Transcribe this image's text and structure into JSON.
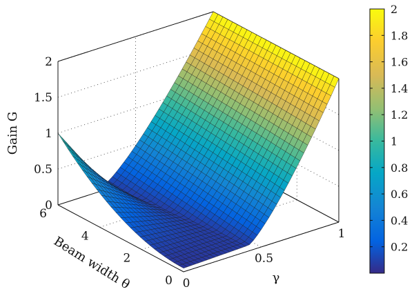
{
  "chart_data": {
    "type": "surface",
    "zlabel": "Gain G",
    "xlabel": "Beam width θ",
    "ylabel": "γ",
    "theta_range": [
      0,
      6
    ],
    "gamma_range": [
      0,
      1
    ],
    "zlim": [
      0,
      2
    ],
    "theta_ticks": [
      "0",
      "2",
      "4",
      "6"
    ],
    "gamma_ticks": [
      "0",
      "0.5",
      "1"
    ],
    "z_ticks": [
      "0",
      "0.5",
      "1",
      "1.5",
      "2"
    ],
    "colorbar": {
      "range": [
        0,
        2
      ],
      "ticks": [
        "0.2",
        "0.4",
        "0.6",
        "0.8",
        "1",
        "1.2",
        "1.4",
        "1.6",
        "1.8",
        "2"
      ],
      "colors": [
        "#352a87",
        "#0363e1",
        "#1485d4",
        "#06a7c6",
        "#38b99e",
        "#92bf73",
        "#d9ba56",
        "#fcce2e",
        "#f9fb0e"
      ]
    },
    "corner_values": [
      {
        "theta": 6,
        "gamma": 0,
        "G": 1.0
      },
      {
        "theta": 6,
        "gamma": 1,
        "G": 2.0
      },
      {
        "theta": 0,
        "gamma": 0,
        "G": 0.0
      },
      {
        "theta": 0,
        "gamma": 1,
        "G": 2.0
      },
      {
        "theta": 6,
        "gamma": 0.5,
        "G": 0.4
      },
      {
        "theta": 0,
        "gamma": 0.5,
        "G": 0.2
      }
    ],
    "grid": true,
    "colorbar_position": "right"
  }
}
